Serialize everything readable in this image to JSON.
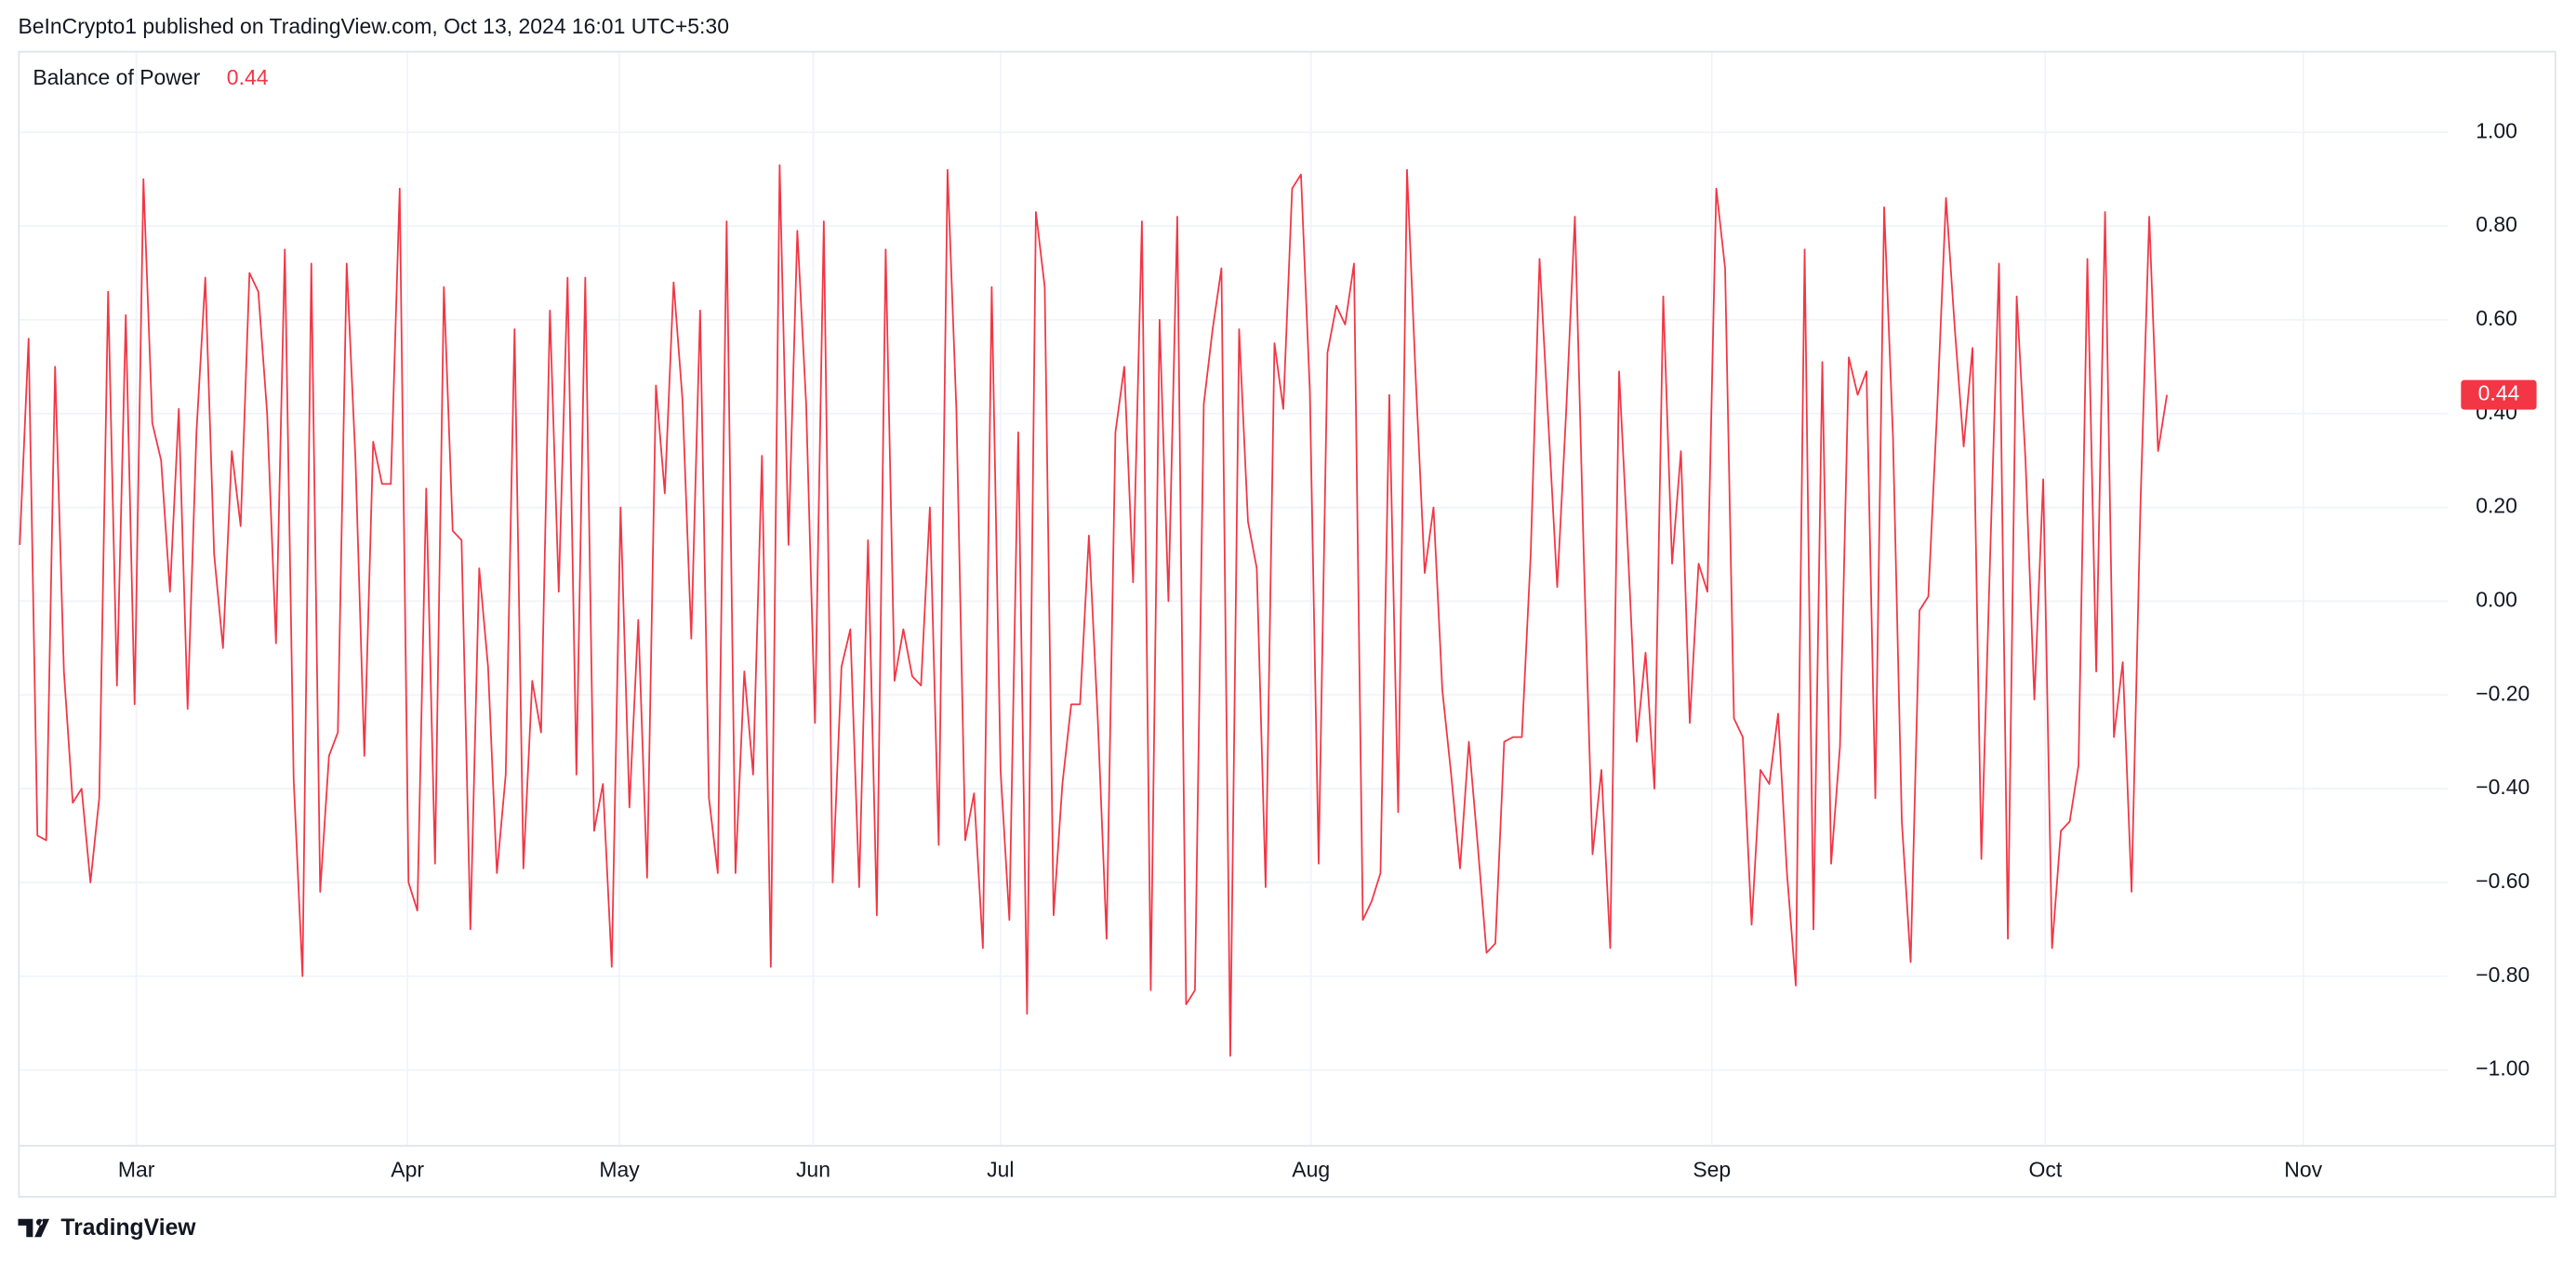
{
  "header": "BeInCrypto1 published on TradingView.com, Oct 13, 2024 16:01 UTC+5:30",
  "footer": "TradingView",
  "chart_data": {
    "type": "line",
    "title": "Balance of Power",
    "current_value": 0.44,
    "current_value_label": "0.44",
    "month_labels": [
      "Mar",
      "Apr",
      "May",
      "Jun",
      "Jul",
      "Aug",
      "Sep",
      "Oct",
      "Nov"
    ],
    "ylim": [
      -1.16,
      1.17
    ],
    "yticks": [
      {
        "value": 1,
        "label": "1.00"
      },
      {
        "value": 0.8,
        "label": "0.80"
      },
      {
        "value": 0.6,
        "label": "0.60"
      },
      {
        "value": 0.4,
        "label": "0.40"
      },
      {
        "value": 0.2,
        "label": "0.20"
      },
      {
        "value": 0,
        "label": "0.00"
      },
      {
        "value": -0.2,
        "label": "−0.20"
      },
      {
        "value": -0.4,
        "label": "−0.40"
      },
      {
        "value": -0.6,
        "label": "−0.60"
      },
      {
        "value": -0.8,
        "label": "−0.80"
      },
      {
        "value": -1,
        "label": "−1.00"
      }
    ],
    "grid": true,
    "series": [
      {
        "name": "Balance of Power",
        "color": "#f23645",
        "values": [
          0.12,
          0.56,
          -0.5,
          -0.51,
          0.5,
          -0.15,
          -0.43,
          -0.4,
          -0.6,
          -0.42,
          0.66,
          -0.18,
          0.61,
          -0.22,
          0.9,
          0.38,
          0.3,
          0.02,
          0.41,
          -0.23,
          0.36,
          0.69,
          0.1,
          -0.1,
          0.32,
          0.16,
          0.7,
          0.66,
          0.4,
          -0.09,
          0.75,
          -0.38,
          -0.8,
          0.72,
          -0.62,
          -0.33,
          -0.28,
          0.72,
          0.3,
          -0.33,
          0.34,
          0.25,
          0.25,
          0.88,
          -0.6,
          -0.66,
          0.24,
          -0.56,
          0.67,
          0.15,
          0.13,
          -0.7,
          0.07,
          -0.14,
          -0.58,
          -0.37,
          0.58,
          -0.57,
          -0.17,
          -0.28,
          0.62,
          0.02,
          0.69,
          -0.37,
          0.69,
          -0.49,
          -0.39,
          -0.78,
          0.2,
          -0.44,
          -0.04,
          -0.59,
          0.46,
          0.23,
          0.68,
          0.43,
          -0.08,
          0.62,
          -0.42,
          -0.58,
          0.81,
          -0.58,
          -0.15,
          -0.37,
          0.31,
          -0.78,
          0.93,
          0.12,
          0.79,
          0.42,
          -0.26,
          0.81,
          -0.6,
          -0.14,
          -0.06,
          -0.61,
          0.13,
          -0.67,
          0.75,
          -0.17,
          -0.06,
          -0.16,
          -0.18,
          0.2,
          -0.52,
          0.92,
          0.41,
          -0.51,
          -0.41,
          -0.74,
          0.67,
          -0.36,
          -0.68,
          0.36,
          -0.88,
          0.83,
          0.67,
          -0.67,
          -0.39,
          -0.22,
          -0.22,
          0.14,
          -0.25,
          -0.72,
          0.36,
          0.5,
          0.04,
          0.81,
          -0.83,
          0.6,
          0.0,
          0.82,
          -0.86,
          -0.83,
          0.42,
          0.58,
          0.71,
          -0.97,
          0.58,
          0.17,
          0.07,
          -0.61,
          0.55,
          0.41,
          0.88,
          0.91,
          0.45,
          -0.56,
          0.53,
          0.63,
          0.59,
          0.72,
          -0.68,
          -0.64,
          -0.58,
          0.44,
          -0.45,
          0.92,
          0.47,
          0.06,
          0.2,
          -0.19,
          -0.37,
          -0.57,
          -0.3,
          -0.52,
          -0.75,
          -0.73,
          -0.3,
          -0.29,
          -0.29,
          0.1,
          0.73,
          0.38,
          0.03,
          0.4,
          0.82,
          0.1,
          -0.54,
          -0.36,
          -0.74,
          0.49,
          0.11,
          -0.3,
          -0.11,
          -0.4,
          0.65,
          0.08,
          0.32,
          -0.26,
          0.08,
          0.02,
          0.88,
          0.71,
          -0.25,
          -0.29,
          -0.69,
          -0.36,
          -0.39,
          -0.24,
          -0.58,
          -0.82,
          0.75,
          -0.7,
          0.51,
          -0.56,
          -0.31,
          0.52,
          0.44,
          0.49,
          -0.42,
          0.84,
          0.35,
          -0.47,
          -0.77,
          -0.02,
          0.01,
          0.41,
          0.86,
          0.58,
          0.33,
          0.54,
          -0.55,
          0.1,
          0.72,
          -0.72,
          0.65,
          0.3,
          -0.21,
          0.26,
          -0.74,
          -0.49,
          -0.47,
          -0.35,
          0.73,
          -0.15,
          0.83,
          -0.29,
          -0.13,
          -0.62,
          0.2,
          0.82,
          0.32,
          0.44
        ]
      }
    ]
  }
}
